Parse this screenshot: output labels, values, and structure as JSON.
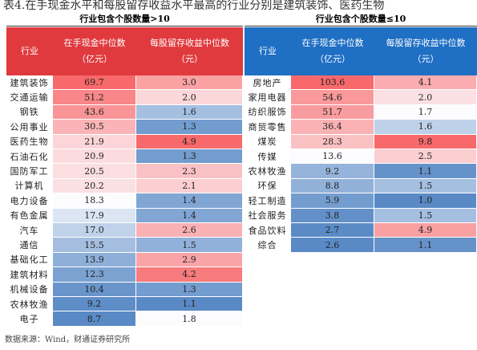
{
  "title": "表4.在手现金水平和每股留存收益水平最高的行业分别是建筑装饰、医药生物",
  "left": {
    "group": "行业包含个股数量>10",
    "headers": [
      [
        "行业"
      ],
      [
        "在手现金中位数",
        "（亿元）"
      ],
      [
        "每股留存收益中位数",
        "（元）"
      ]
    ],
    "rows": [
      [
        "建筑装饰",
        "69.7",
        "3.0"
      ],
      [
        "交通运输",
        "51.2",
        "2.0"
      ],
      [
        "钢铁",
        "43.6",
        "1.6"
      ],
      [
        "公用事业",
        "30.5",
        "1.3"
      ],
      [
        "医药生物",
        "21.9",
        "4.9"
      ],
      [
        "石油石化",
        "20.9",
        "1.3"
      ],
      [
        "国防军工",
        "20.5",
        "2.3"
      ],
      [
        "计算机",
        "20.2",
        "2.1"
      ],
      [
        "电力设备",
        "18.3",
        "1.4"
      ],
      [
        "有色金属",
        "17.9",
        "1.4"
      ],
      [
        "汽车",
        "17.0",
        "2.6"
      ],
      [
        "通信",
        "15.5",
        "1.5"
      ],
      [
        "基础化工",
        "13.9",
        "2.9"
      ],
      [
        "建筑材料",
        "12.3",
        "4.2"
      ],
      [
        "机械设备",
        "10.4",
        "1.3"
      ],
      [
        "农林牧渔",
        "9.2",
        "1.1"
      ],
      [
        "电子",
        "8.7",
        "1.8"
      ]
    ]
  },
  "right": {
    "group": "行业包含个股数量≤10",
    "headers": [
      [
        "行业"
      ],
      [
        "在手现金中位数",
        "（亿元）"
      ],
      [
        "每股留存收益中位数",
        "（元）"
      ]
    ],
    "rows": [
      [
        "房地产",
        "103.6",
        "4.1"
      ],
      [
        "家用电器",
        "54.6",
        "2.0"
      ],
      [
        "纺织服饰",
        "51.7",
        "1.7"
      ],
      [
        "商贸零售",
        "36.4",
        "1.6"
      ],
      [
        "煤炭",
        "28.3",
        "9.8"
      ],
      [
        "传媒",
        "13.6",
        "2.5"
      ],
      [
        "农林牧渔",
        "9.2",
        "1.1"
      ],
      [
        "环保",
        "8.8",
        "1.5"
      ],
      [
        "轻工制造",
        "5.9",
        "1.0"
      ],
      [
        "社会服务",
        "3.8",
        "1.5"
      ],
      [
        "食品饮料",
        "2.7",
        "4.9"
      ],
      [
        "综合",
        "2.6",
        "1.1"
      ]
    ]
  },
  "source": "数据来源：Wind，财通证券研究所"
}
